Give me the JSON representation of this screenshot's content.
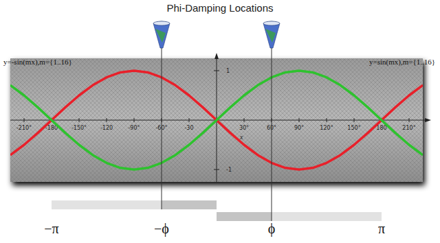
{
  "chart_data": {
    "type": "line",
    "title": "Phi-Damping Locations",
    "x_label": "x",
    "x": [
      -225,
      -210,
      -195,
      -180,
      -165,
      -150,
      -135,
      -120,
      -105,
      -90,
      -75,
      -60,
      -45,
      -30,
      -15,
      0,
      15,
      30,
      45,
      60,
      75,
      90,
      105,
      120,
      135,
      150,
      165,
      180,
      195,
      210,
      225
    ],
    "series": [
      {
        "name": "y=-sin(mx),m={1..16}",
        "color": "#e8202a",
        "values": [
          -0.707,
          -0.5,
          -0.259,
          0,
          0.259,
          0.5,
          0.707,
          0.866,
          0.966,
          1,
          0.966,
          0.866,
          0.707,
          0.5,
          0.259,
          0,
          -0.259,
          -0.5,
          -0.707,
          -0.866,
          -0.966,
          -1,
          -0.966,
          -0.866,
          -0.707,
          -0.5,
          -0.259,
          0,
          0.259,
          0.5,
          0.707
        ]
      },
      {
        "name": "y=sin(mx),m={1..16}",
        "color": "#2ec22e",
        "values": [
          0.707,
          0.5,
          0.259,
          0,
          -0.259,
          -0.5,
          -0.707,
          -0.866,
          -0.966,
          -1,
          -0.966,
          -0.866,
          -0.707,
          -0.5,
          -0.259,
          0,
          0.259,
          0.5,
          0.707,
          0.866,
          0.966,
          1,
          0.966,
          0.866,
          0.707,
          0.5,
          0.259,
          0,
          -0.259,
          -0.5,
          -0.707
        ]
      }
    ],
    "xlim": [
      -225,
      225
    ],
    "ylim": [
      -1.25,
      1.25
    ],
    "xticks": [
      {
        "value": -210,
        "label": "-210°"
      },
      {
        "value": -180,
        "label": "-180"
      },
      {
        "value": -150,
        "label": "-150°"
      },
      {
        "value": -120,
        "label": "-120"
      },
      {
        "value": -90,
        "label": "-90°"
      },
      {
        "value": -60,
        "label": "-60°"
      },
      {
        "value": -30,
        "label": "-30"
      },
      {
        "value": 30,
        "label": "30°"
      },
      {
        "value": 60,
        "label": "60°"
      },
      {
        "value": 90,
        "label": "90°"
      },
      {
        "value": 120,
        "label": "120°"
      },
      {
        "value": 150,
        "label": "150°"
      },
      {
        "value": 180,
        "label": "180"
      },
      {
        "value": 210,
        "label": "210°"
      }
    ],
    "yticks": [
      -1,
      1
    ],
    "annotations": [
      {
        "x": -180,
        "label": "−π"
      },
      {
        "x": -60,
        "label": "−ϕ"
      },
      {
        "x": 60,
        "label": "ϕ"
      },
      {
        "x": 180,
        "label": "π"
      }
    ]
  }
}
